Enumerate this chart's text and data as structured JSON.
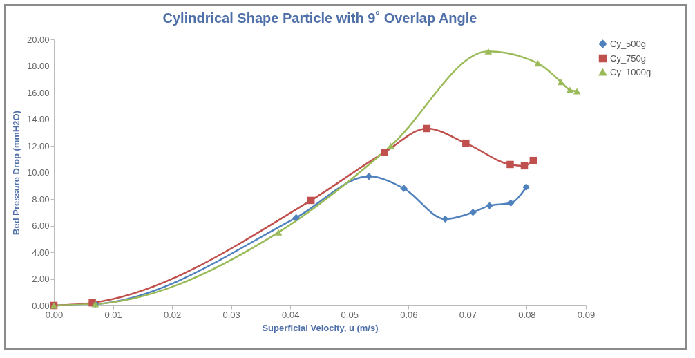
{
  "chart_data": {
    "type": "line",
    "title": "Cylindrical Shape Particle with 9˚ Overlap Angle",
    "xlabel": "Superficial Velocity, u (m/s)",
    "ylabel": "Bed Pressure Drop (mmH2O)",
    "xlim": [
      0,
      0.09
    ],
    "xticks": [
      {
        "value": 0,
        "label": "0.00"
      },
      {
        "value": 0.01,
        "label": "0.01"
      },
      {
        "value": 0.02,
        "label": "0.02"
      },
      {
        "value": 0.03,
        "label": "0.03"
      },
      {
        "value": 0.04,
        "label": "0.04"
      },
      {
        "value": 0.05,
        "label": "0.05"
      },
      {
        "value": 0.06,
        "label": "0.06"
      },
      {
        "value": 0.07,
        "label": "0.07"
      },
      {
        "value": 0.08,
        "label": "0.08"
      },
      {
        "value": 0.09,
        "label": "0.09"
      }
    ],
    "ylim": [
      0,
      20
    ],
    "yticks": [
      {
        "value": 0,
        "label": "0.00"
      },
      {
        "value": 2,
        "label": "2.00"
      },
      {
        "value": 4,
        "label": "4.00"
      },
      {
        "value": 6,
        "label": "6.00"
      },
      {
        "value": 8,
        "label": "8.00"
      },
      {
        "value": 10,
        "label": "10.00"
      },
      {
        "value": 12,
        "label": "12.00"
      },
      {
        "value": 14,
        "label": "14.00"
      },
      {
        "value": 16,
        "label": "16.00"
      },
      {
        "value": 18,
        "label": "18.00"
      },
      {
        "value": 20,
        "label": "20.00"
      }
    ],
    "grid": false,
    "legend": "right",
    "series": [
      {
        "name": "Cy_500g",
        "color": "#4f81bd",
        "marker": "diamond",
        "x": [
          0,
          0.007,
          0.041,
          0.0533,
          0.0592,
          0.0662,
          0.0709,
          0.0737,
          0.0773,
          0.0799
        ],
        "values": [
          0,
          0.1,
          6.6,
          9.7,
          8.8,
          6.5,
          7.0,
          7.5,
          7.7,
          8.9
        ]
      },
      {
        "name": "Cy_750g",
        "color": "#c0504d",
        "marker": "square",
        "x": [
          0,
          0.0065,
          0.0435,
          0.0559,
          0.0631,
          0.0697,
          0.0772,
          0.0796,
          0.0811
        ],
        "values": [
          0,
          0.2,
          7.9,
          11.5,
          13.3,
          12.2,
          10.6,
          10.5,
          10.9
        ]
      },
      {
        "name": "Cy_1000g",
        "color": "#9bbb59",
        "marker": "triangle",
        "x": [
          0,
          0.007,
          0.038,
          0.057,
          0.0735,
          0.0819,
          0.0858,
          0.0873,
          0.0885
        ],
        "values": [
          0,
          0.1,
          5.5,
          12.0,
          19.1,
          18.2,
          16.8,
          16.2,
          16.1
        ]
      }
    ]
  }
}
